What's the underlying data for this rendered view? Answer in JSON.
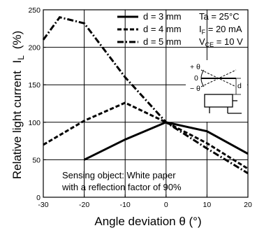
{
  "chart_data": {
    "type": "line",
    "xlabel": "Angle deviation θ (°)",
    "ylabel": "Relative light current",
    "ylabel_symbol": "I",
    "ylabel_subscript": "L",
    "ylabel_unit": "(%)",
    "xlim": [
      -30,
      20
    ],
    "ylim": [
      0,
      250
    ],
    "x_ticks": [
      "-30",
      "-20",
      "-10",
      "0",
      "10",
      "20"
    ],
    "y_ticks": [
      "0",
      "50",
      "100",
      "150",
      "200",
      "250"
    ],
    "grid": true,
    "series": [
      {
        "name": "d = 3 mm",
        "style": "solid",
        "x": [
          -20,
          -10,
          0,
          10,
          20
        ],
        "y": [
          50,
          77,
          100,
          88,
          58
        ]
      },
      {
        "name": "d = 4 mm",
        "style": "dashed",
        "x": [
          -30,
          -20,
          -10,
          0,
          10,
          20
        ],
        "y": [
          70,
          102,
          126,
          100,
          72,
          38
        ]
      },
      {
        "name": "d = 5 mm",
        "style": "dashdot",
        "x": [
          -30,
          -26,
          -20,
          -10,
          0,
          10,
          20
        ],
        "y": [
          210,
          240,
          232,
          160,
          100,
          65,
          32
        ]
      }
    ],
    "conditions": [
      {
        "main": "Ta = 25°C",
        "sub": ""
      },
      {
        "main": "I",
        "sub": "F",
        "rest": " = 20 mA"
      },
      {
        "main": "V",
        "sub": "CE",
        "rest": " = 10 V"
      }
    ],
    "annotation_lines": [
      "Sensing object: White paper",
      "with a reflection factor of 90%"
    ],
    "diagram_labels": {
      "theta_plus": "+ θ",
      "zero": "0",
      "theta_minus": "− θ",
      "d": "d"
    }
  }
}
